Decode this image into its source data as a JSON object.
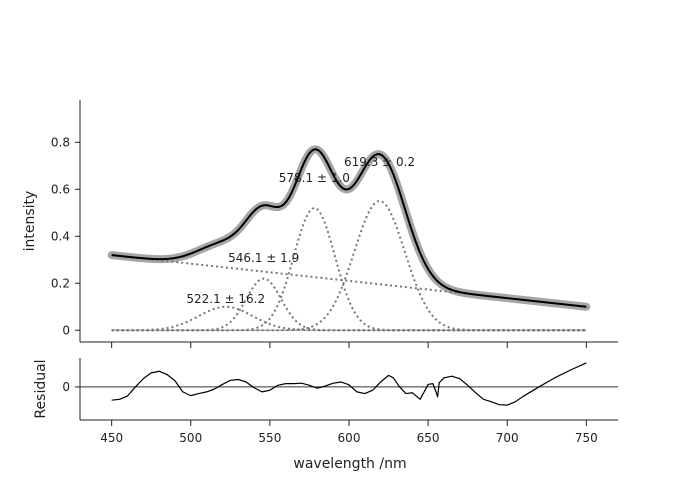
{
  "chart_data": [
    {
      "type": "line",
      "title": "",
      "xlabel": "",
      "ylabel": "intensity",
      "xlim": [
        430,
        770
      ],
      "ylim": [
        -0.05,
        0.98
      ],
      "yticks": [
        0,
        0.2,
        0.4,
        0.6,
        0.8
      ],
      "ytick_labels": [
        "0",
        "0.2",
        "0.4",
        "0.6",
        "0.8"
      ],
      "baseline": {
        "name": "baseline",
        "x1": 450,
        "y1": 0.32,
        "x2": 750,
        "y2": 0.1
      },
      "peaks": [
        {
          "name": "peak-522",
          "center": 522.1,
          "amplitude": 0.1,
          "sigma": 17,
          "label": "522.1 ± 16.2",
          "label_x": 522.1,
          "label_y": 0.115
        },
        {
          "name": "peak-546",
          "center": 546.1,
          "amplitude": 0.22,
          "sigma": 11,
          "label": "546.1 ± 1.9",
          "label_x": 546.1,
          "label_y": 0.29
        },
        {
          "name": "peak-578",
          "center": 578.1,
          "amplitude": 0.52,
          "sigma": 13,
          "label": "578.1 ± 1.0",
          "label_x": 578.1,
          "label_y": 0.63
        },
        {
          "name": "peak-619",
          "center": 619.3,
          "amplitude": 0.55,
          "sigma": 16,
          "label": "619.3 ± 0.2",
          "label_x": 619.3,
          "label_y": 0.7
        }
      ],
      "series": [
        {
          "name": "data",
          "style": "thick-gray"
        },
        {
          "name": "fit",
          "style": "black-solid"
        }
      ]
    },
    {
      "type": "line",
      "xlabel": "wavelength /nm",
      "ylabel": "Residual",
      "xlim": [
        430,
        770
      ],
      "ylim": [
        -0.08,
        0.07
      ],
      "xticks": [
        450,
        500,
        550,
        600,
        650,
        700,
        750
      ],
      "xtick_labels": [
        "450",
        "500",
        "550",
        "600",
        "650",
        "700",
        "750"
      ],
      "yticks": [
        0
      ],
      "ytick_labels": [
        "0"
      ],
      "series": [
        {
          "name": "residual",
          "x": [
            450,
            455,
            460,
            465,
            470,
            475,
            480,
            485,
            490,
            495,
            500,
            505,
            510,
            515,
            520,
            525,
            530,
            535,
            540,
            545,
            550,
            555,
            560,
            565,
            570,
            575,
            580,
            585,
            590,
            595,
            600,
            605,
            610,
            615,
            620,
            625,
            628,
            632,
            636,
            640,
            645,
            650,
            653,
            655,
            656,
            657,
            660,
            665,
            670,
            675,
            680,
            685,
            690,
            695,
            700,
            705,
            710,
            720,
            730,
            740,
            750
          ],
          "y": [
            -0.032,
            -0.03,
            -0.022,
            0.0,
            0.02,
            0.034,
            0.038,
            0.03,
            0.015,
            -0.012,
            -0.021,
            -0.016,
            -0.012,
            -0.005,
            0.006,
            0.016,
            0.018,
            0.012,
            -0.002,
            -0.012,
            -0.008,
            0.004,
            0.008,
            0.008,
            0.009,
            0.004,
            -0.003,
            0.002,
            0.009,
            0.012,
            0.005,
            -0.012,
            -0.016,
            -0.008,
            0.012,
            0.028,
            0.022,
            0.0,
            -0.016,
            -0.014,
            -0.03,
            0.006,
            0.008,
            -0.012,
            -0.024,
            0.01,
            0.022,
            0.026,
            0.02,
            0.004,
            -0.014,
            -0.03,
            -0.036,
            -0.043,
            -0.044,
            -0.036,
            -0.023,
            0.0,
            0.022,
            0.041,
            0.058
          ]
        }
      ]
    }
  ]
}
